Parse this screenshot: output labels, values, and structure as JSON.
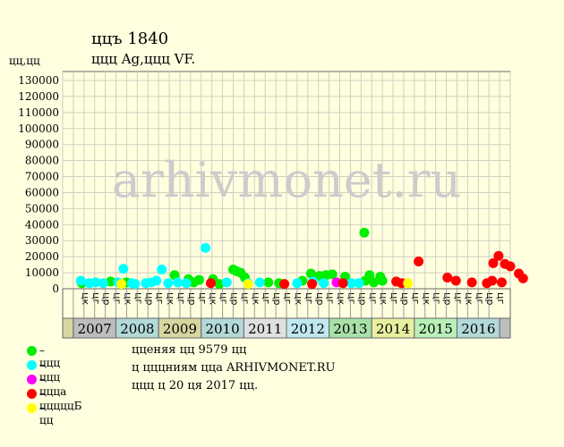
{
  "header": {
    "title": "ццъ 1840",
    "subtitle": "ццц Ag,ццц VF.",
    "yunit": "цц,цц"
  },
  "watermark": "arhivmonet.ru",
  "info": {
    "line1": "цценяя цц 9579 цц",
    "line2": "ц цццниям цца ARHIVMONET.RU",
    "line3": "ццц ц 20 ця 2017 цц."
  },
  "legend": [
    {
      "label": "– ццц",
      "color": "#00ee00"
    },
    {
      "label": "– ццц",
      "color": "#00ffff"
    },
    {
      "label": "– ццца",
      "color": "#ff00ff"
    },
    {
      "label": "– цццццБ",
      "color": "#ff0000"
    },
    {
      "label": "– цц",
      "color": "#ffff00"
    }
  ],
  "chart_data": {
    "type": "scatter",
    "ylim": [
      0,
      130000
    ],
    "yticks": [
      0,
      10000,
      20000,
      30000,
      40000,
      50000,
      60000,
      70000,
      80000,
      90000,
      100000,
      110000,
      120000,
      130000
    ],
    "month_labels": [
      "цк",
      "цг",
      "цр",
      "цг",
      "цк",
      "цг",
      "цр",
      "цг",
      "цк",
      "цг",
      "цр",
      "цг",
      "цк",
      "цг",
      "цр",
      "цг",
      "цк",
      "цг",
      "цр",
      "цг",
      "цк",
      "цг",
      "цр",
      "цг",
      "цк",
      "цг",
      "цр",
      "цг",
      "цк",
      "цг",
      "цр",
      "цг",
      "цк",
      "цг",
      "цр",
      "цг",
      "цк",
      "цг",
      "цр",
      "цг"
    ],
    "years": [
      {
        "label": "",
        "color": "#d6d6a0"
      },
      {
        "label": "2007",
        "color": "#bdbdbd"
      },
      {
        "label": "2008",
        "color": "#b3d9d9"
      },
      {
        "label": "2009",
        "color": "#d6d6a0"
      },
      {
        "label": "2010",
        "color": "#b3d9d9"
      },
      {
        "label": "2011",
        "color": "#e0e0e0"
      },
      {
        "label": "2012",
        "color": "#c0e8f0"
      },
      {
        "label": "2013",
        "color": "#a8e0a8"
      },
      {
        "label": "2014",
        "color": "#e8f0a0"
      },
      {
        "label": "2015",
        "color": "#b8f0b8"
      },
      {
        "label": "2016",
        "color": "#b3d9d9"
      },
      {
        "label": "",
        "color": "#bdbdbd"
      }
    ],
    "series": [
      {
        "category": 1,
        "points": [
          [
            0.3,
            3500
          ],
          [
            3,
            4500
          ],
          [
            4.5,
            4000
          ],
          [
            9,
            8500
          ],
          [
            10.3,
            6000
          ],
          [
            10.8,
            4000
          ],
          [
            11.3,
            5500
          ],
          [
            12.6,
            6000
          ],
          [
            13.2,
            3000
          ],
          [
            14.5,
            12000
          ],
          [
            14.8,
            11000
          ],
          [
            15.2,
            10000
          ],
          [
            15.6,
            7000
          ],
          [
            17.8,
            4000
          ],
          [
            18.8,
            3500
          ],
          [
            21,
            5000
          ],
          [
            21.8,
            9500
          ],
          [
            22.6,
            8000
          ],
          [
            23.2,
            8500
          ],
          [
            23.8,
            9000
          ],
          [
            25,
            7500
          ],
          [
            26.8,
            35000
          ],
          [
            26.9,
            5000
          ],
          [
            27.3,
            8500
          ],
          [
            27.7,
            4000
          ],
          [
            28.3,
            7500
          ],
          [
            28.5,
            5000
          ]
        ]
      },
      {
        "category": 2,
        "points": [
          [
            0.2,
            5000
          ],
          [
            1,
            3500
          ],
          [
            1.6,
            4000
          ],
          [
            2.3,
            3500
          ],
          [
            3.7,
            4000
          ],
          [
            4.2,
            12500
          ],
          [
            5,
            3500
          ],
          [
            5.3,
            3000
          ],
          [
            6.3,
            3500
          ],
          [
            6.8,
            4000
          ],
          [
            7.3,
            5000
          ],
          [
            7.8,
            12000
          ],
          [
            8.4,
            3500
          ],
          [
            9.3,
            4000
          ],
          [
            10.1,
            3500
          ],
          [
            11.9,
            25500
          ],
          [
            13.9,
            4000
          ],
          [
            15.9,
            3500
          ],
          [
            17,
            4000
          ],
          [
            20.5,
            3500
          ],
          [
            22,
            4500
          ],
          [
            23,
            3500
          ],
          [
            25.6,
            3500
          ],
          [
            26.3,
            3500
          ]
        ]
      },
      {
        "category": 3,
        "points": [
          [
            24.2,
            4000
          ]
        ]
      },
      {
        "category": 4,
        "points": [
          [
            12.4,
            3500
          ],
          [
            19.3,
            3000
          ],
          [
            21.9,
            3000
          ],
          [
            24.8,
            3500
          ],
          [
            29.8,
            4500
          ],
          [
            30.3,
            3500
          ],
          [
            31.9,
            17000
          ],
          [
            34.6,
            7000
          ],
          [
            35.4,
            5000
          ],
          [
            36.9,
            4000
          ],
          [
            38.3,
            3500
          ],
          [
            38.8,
            5000
          ],
          [
            38.9,
            16000
          ],
          [
            39.4,
            20500
          ],
          [
            39.7,
            4000
          ],
          [
            40,
            15500
          ],
          [
            40.5,
            14000
          ],
          [
            41.3,
            9500
          ],
          [
            41.7,
            6500
          ]
        ]
      },
      {
        "category": 5,
        "points": [
          [
            4,
            3000
          ],
          [
            15.9,
            3000
          ],
          [
            30.9,
            3500
          ]
        ]
      }
    ]
  }
}
